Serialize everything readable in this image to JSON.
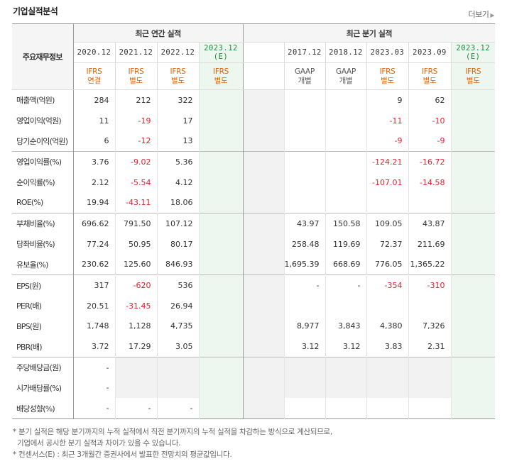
{
  "title": "기업실적분석",
  "more": "더보기",
  "header": {
    "row_header": "주요재무정보",
    "annual_group": "최근 연간 실적",
    "quarter_group": "최근 분기 실적",
    "annual_periods": [
      {
        "date": "2020.12",
        "std": "IFRS",
        "type": "연결",
        "est": false
      },
      {
        "date": "2021.12",
        "std": "IFRS",
        "type": "별도",
        "est": false
      },
      {
        "date": "2022.12",
        "std": "IFRS",
        "type": "별도",
        "est": false
      },
      {
        "date": "2023.12",
        "suffix": "(E)",
        "std": "IFRS",
        "type": "별도",
        "est": true
      }
    ],
    "quarter_periods": [
      {
        "date": "",
        "std": "",
        "type": "",
        "est": false
      },
      {
        "date": "2017.12",
        "std": "GAAP",
        "type": "개별",
        "est": false
      },
      {
        "date": "2018.12",
        "std": "GAAP",
        "type": "개별",
        "est": false
      },
      {
        "date": "2023.03",
        "std": "IFRS",
        "type": "별도",
        "est": false
      },
      {
        "date": "2023.09",
        "std": "IFRS",
        "type": "별도",
        "est": false
      },
      {
        "date": "2023.12",
        "suffix": "(E)",
        "std": "IFRS",
        "type": "별도",
        "est": true
      }
    ]
  },
  "rows": [
    {
      "label": "매출액(억원)",
      "annual": [
        "284",
        "212",
        "322",
        ""
      ],
      "quarter": [
        "",
        "",
        "",
        "9",
        "62",
        ""
      ]
    },
    {
      "label": "영업이익(억원)",
      "annual": [
        "11",
        "-19",
        "17",
        ""
      ],
      "quarter": [
        "",
        "",
        "",
        "-11",
        "-10",
        ""
      ]
    },
    {
      "label": "당기순이익(억원)",
      "annual": [
        "6",
        "-12",
        "13",
        ""
      ],
      "quarter": [
        "",
        "",
        "",
        "-9",
        "-9",
        ""
      ]
    },
    {
      "label": "영업이익률(%)",
      "sep": true,
      "annual": [
        "3.76",
        "-9.02",
        "5.36",
        ""
      ],
      "quarter": [
        "",
        "",
        "",
        "-124.21",
        "-16.72",
        ""
      ]
    },
    {
      "label": "순이익률(%)",
      "annual": [
        "2.12",
        "-5.54",
        "4.12",
        ""
      ],
      "quarter": [
        "",
        "",
        "",
        "-107.01",
        "-14.58",
        ""
      ]
    },
    {
      "label": "ROE(%)",
      "annual": [
        "19.94",
        "-43.11",
        "18.06",
        ""
      ],
      "quarter": [
        "",
        "",
        "",
        "",
        "",
        ""
      ]
    },
    {
      "label": "부채비율(%)",
      "sep": true,
      "annual": [
        "696.62",
        "791.50",
        "107.12",
        ""
      ],
      "quarter": [
        "",
        "43.97",
        "150.58",
        "109.05",
        "43.87",
        ""
      ]
    },
    {
      "label": "당좌비율(%)",
      "annual": [
        "77.24",
        "50.95",
        "80.17",
        ""
      ],
      "quarter": [
        "",
        "258.48",
        "119.69",
        "72.37",
        "211.69",
        ""
      ]
    },
    {
      "label": "유보율(%)",
      "annual": [
        "230.62",
        "125.60",
        "846.93",
        ""
      ],
      "quarter": [
        "",
        "1,695.39",
        "668.69",
        "776.05",
        "1,365.22",
        ""
      ]
    },
    {
      "label": "EPS(원)",
      "sep": true,
      "annual": [
        "317",
        "-620",
        "536",
        ""
      ],
      "quarter": [
        "",
        "-",
        "-",
        "-354",
        "-310",
        ""
      ]
    },
    {
      "label": "PER(배)",
      "annual": [
        "20.51",
        "-31.45",
        "26.94",
        ""
      ],
      "quarter": [
        "",
        "",
        "",
        "",
        "",
        ""
      ]
    },
    {
      "label": "BPS(원)",
      "annual": [
        "1,748",
        "1,128",
        "4,735",
        ""
      ],
      "quarter": [
        "",
        "8,977",
        "3,843",
        "4,380",
        "7,326",
        ""
      ]
    },
    {
      "label": "PBR(배)",
      "annual": [
        "3.72",
        "17.29",
        "3.05",
        ""
      ],
      "quarter": [
        "",
        "3.12",
        "3.12",
        "3.83",
        "2.31",
        ""
      ]
    },
    {
      "label": "주당배당금(원)",
      "sep": true,
      "annual": [
        "-",
        "",
        "",
        ""
      ],
      "quarter": [
        "",
        "",
        "",
        "",
        "",
        ""
      ],
      "empty_from": 1
    },
    {
      "label": "시가배당률(%)",
      "annual": [
        "-",
        "",
        "",
        ""
      ],
      "quarter": [
        "",
        "",
        "",
        "",
        "",
        ""
      ],
      "empty_from": 1
    },
    {
      "label": "배당성향(%)",
      "annual": [
        "-",
        "-",
        "-",
        ""
      ],
      "quarter": [
        "",
        "",
        "",
        "",
        "",
        ""
      ]
    }
  ],
  "notes": [
    "* 분기 실적은 해당 분기까지의 누적 실적에서 직전 분기까지의 누적 실적을 차감하는 방식으로 계산되므로,",
    "기업에서 공시한 분기 실적과 차이가 있을 수 있습니다.",
    "* 컨센서스(E) : 최근 3개월간 증권사에서 발표한 전망치의 평균값입니다."
  ]
}
